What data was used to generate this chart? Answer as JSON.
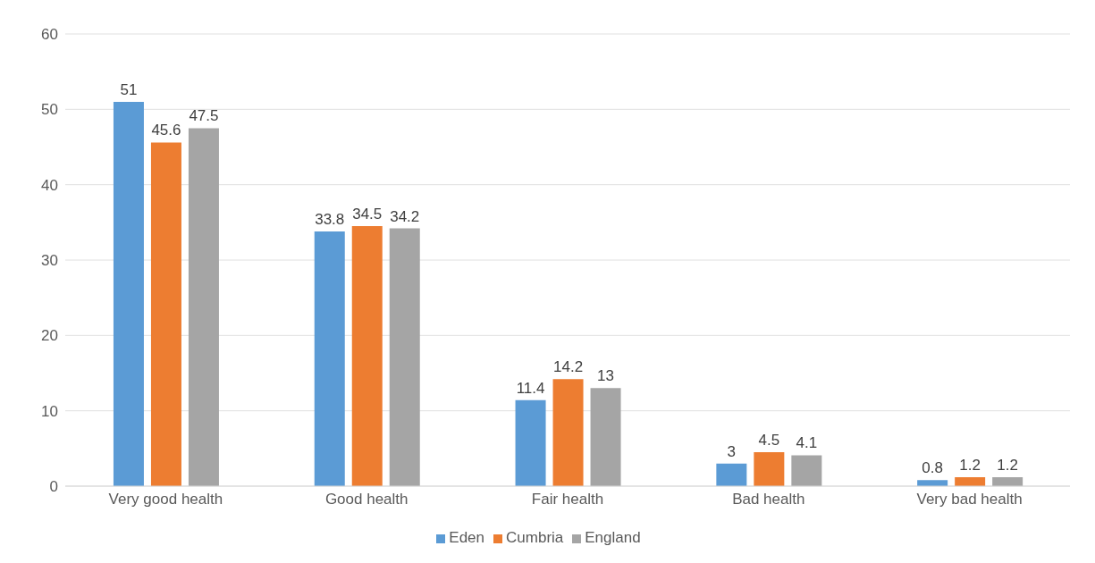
{
  "chart_data": {
    "type": "bar",
    "categories": [
      "Very good health",
      "Good health",
      "Fair health",
      "Bad health",
      "Very bad health"
    ],
    "series": [
      {
        "name": "Eden",
        "color": "#5b9bd5",
        "values": [
          51,
          33.8,
          11.4,
          3,
          0.8
        ]
      },
      {
        "name": "Cumbria",
        "color": "#ed7d31",
        "values": [
          45.6,
          34.5,
          14.2,
          4.5,
          1.2
        ]
      },
      {
        "name": "England",
        "color": "#a5a5a5",
        "values": [
          47.5,
          34.2,
          13,
          4.1,
          1.2
        ]
      }
    ],
    "ylim": [
      0,
      60
    ],
    "yticks": [
      0,
      10,
      20,
      30,
      40,
      50,
      60
    ],
    "grid": "y",
    "legend": "bottom",
    "data_labels": true
  }
}
